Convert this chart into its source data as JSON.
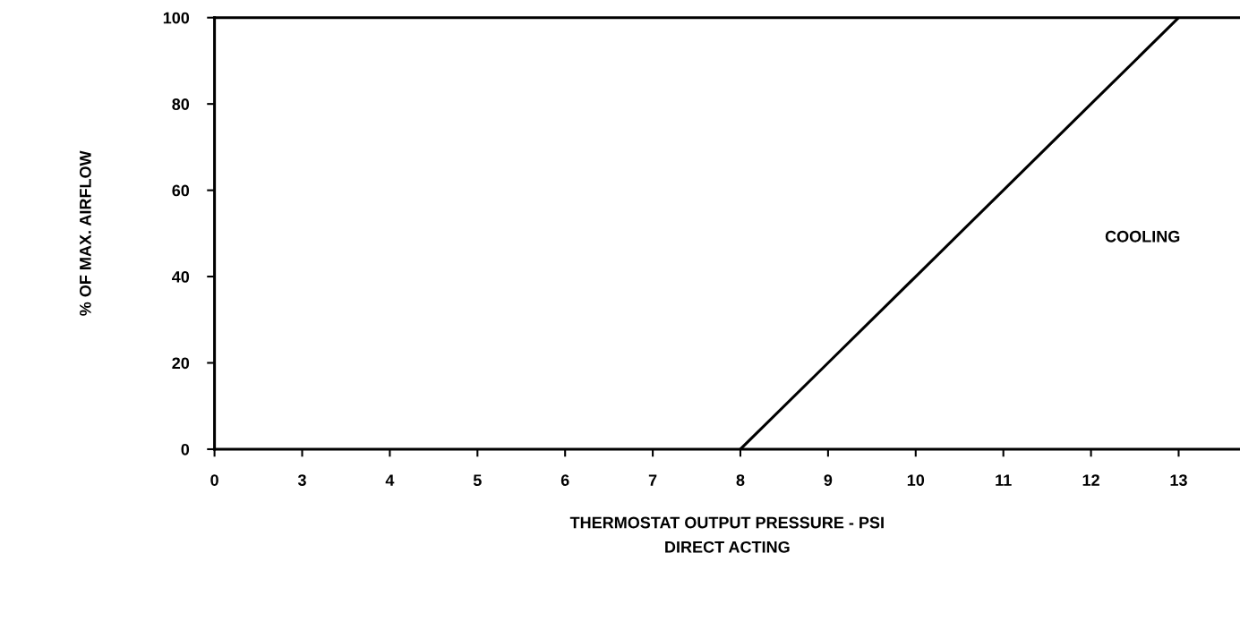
{
  "chart_data": {
    "type": "line",
    "xlabel": "THERMOSTAT OUTPUT PRESSURE - PSI\nDIRECT ACTING",
    "ylabel": "% OF MAX. AIRFLOW",
    "categories": [
      "0",
      "3",
      "4",
      "5",
      "6",
      "7",
      "8",
      "9",
      "10",
      "11",
      "12",
      "13"
    ],
    "series": [
      {
        "color": "#000000",
        "values": [
          null,
          null,
          null,
          null,
          null,
          null,
          0,
          20,
          40,
          60,
          80,
          100
        ]
      }
    ],
    "ylim": [
      0,
      100
    ],
    "yticks": [
      0,
      20,
      40,
      60,
      80,
      100
    ],
    "annotations": [
      "COOLING"
    ],
    "grid": false,
    "legend": false,
    "marker": "none",
    "line_style": "solid"
  }
}
